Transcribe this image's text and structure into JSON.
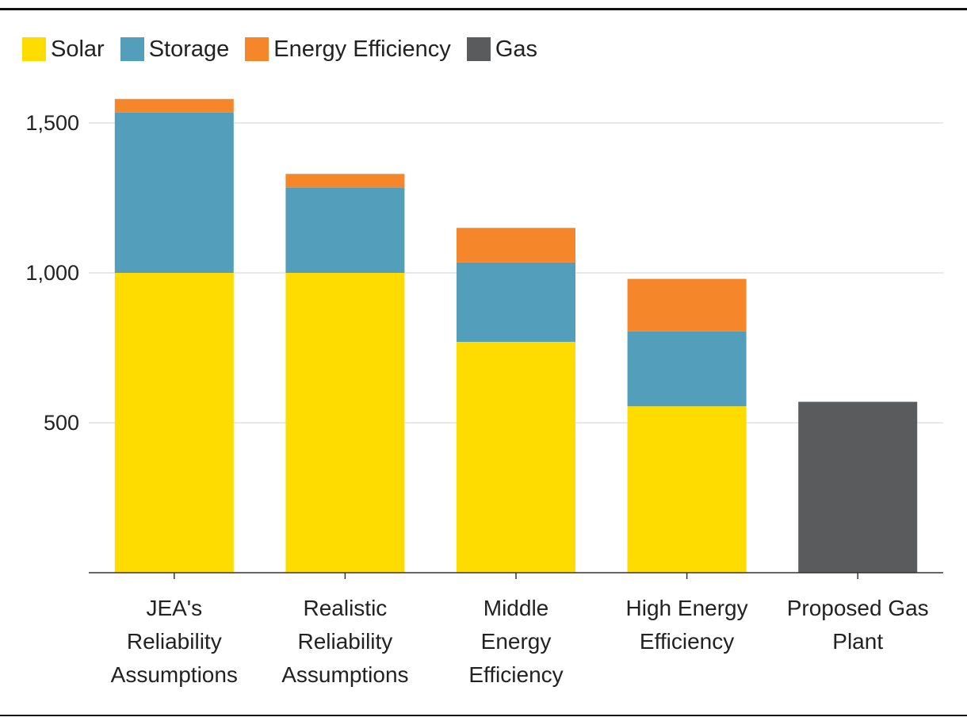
{
  "chart_data": {
    "type": "bar",
    "stacked": true,
    "categories": [
      [
        "JEA's",
        "Reliability",
        "Assumptions"
      ],
      [
        "Realistic",
        "Reliability",
        "Assumptions"
      ],
      [
        "Middle",
        "Energy",
        "Efficiency"
      ],
      [
        "High Energy",
        "Efficiency"
      ],
      [
        "Proposed Gas",
        "Plant"
      ]
    ],
    "series": [
      {
        "name": "Solar",
        "color": "#ffdc00",
        "values": [
          1000,
          1000,
          770,
          555,
          0
        ]
      },
      {
        "name": "Storage",
        "color": "#539eba",
        "values": [
          535,
          285,
          265,
          250,
          0
        ]
      },
      {
        "name": "Energy Efficiency",
        "color": "#f5862a",
        "values": [
          45,
          45,
          115,
          175,
          0
        ]
      },
      {
        "name": "Gas",
        "color": "#5a5b5d",
        "values": [
          0,
          0,
          0,
          0,
          570
        ]
      }
    ],
    "ylim": [
      0,
      1600
    ],
    "yticks": [
      500,
      1000,
      1500
    ],
    "ytick_labels": [
      "500",
      "1,000",
      "1,500"
    ],
    "grid": true,
    "legend": "top-left",
    "title": "",
    "xlabel": "",
    "ylabel": ""
  }
}
